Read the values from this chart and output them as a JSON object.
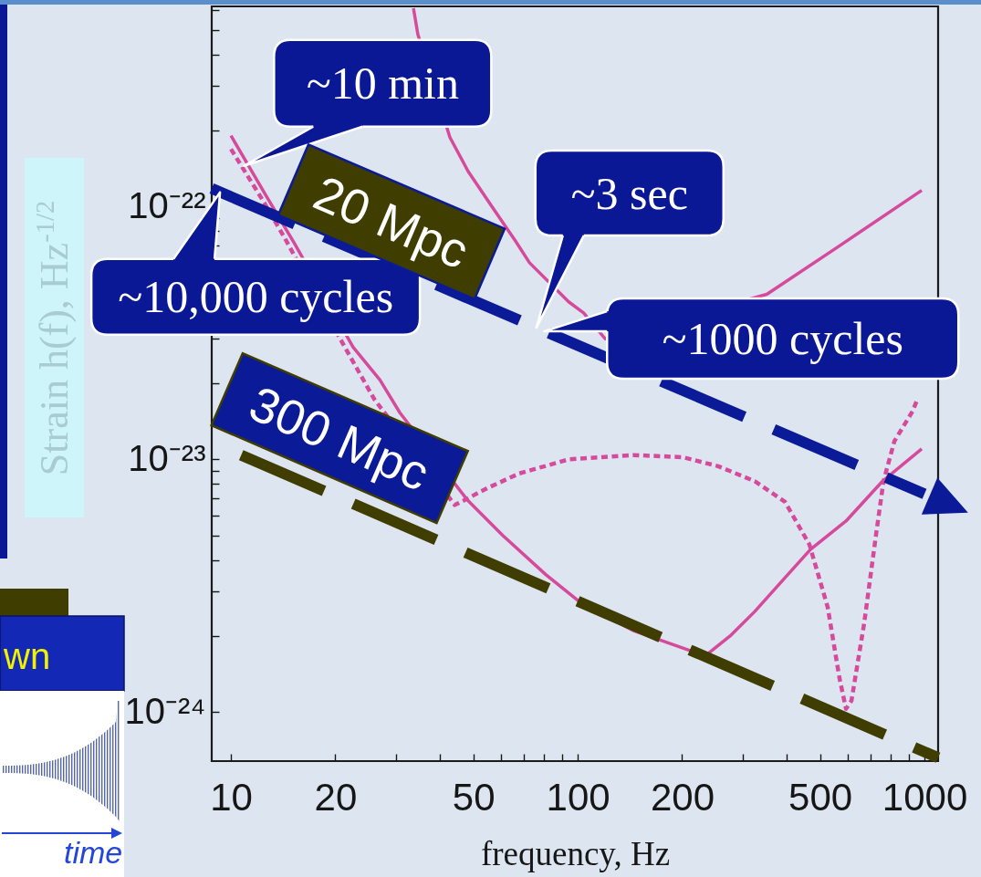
{
  "chart_data": {
    "type": "line",
    "xlabel": "frequency, Hz",
    "ylabel": "Strain h(f), Hz$^{-1/2}$",
    "log": "xy",
    "xlim": [
      8.8,
      1095
    ],
    "ylim": [
      6.4e-25,
      6.2e-22
    ],
    "xticks": [
      10,
      20,
      {
        "value": 30,
        "label": null
      },
      {
        "value": 40,
        "label": null
      },
      50,
      {
        "value": 60,
        "label": null
      },
      {
        "value": 70,
        "label": null
      },
      {
        "value": 80,
        "label": null
      },
      {
        "value": 90,
        "label": null
      },
      100,
      200,
      {
        "value": 300,
        "label": null
      },
      {
        "value": 400,
        "label": null
      },
      500,
      {
        "value": 600,
        "label": null
      },
      {
        "value": 700,
        "label": null
      },
      {
        "value": 800,
        "label": null
      },
      {
        "value": 900,
        "label": null
      },
      1000
    ],
    "yticks": [
      {
        "value": 1e-24,
        "label": "10⁻²⁴"
      },
      {
        "value": 2e-24,
        "label": null
      },
      {
        "value": 3e-24,
        "label": null
      },
      {
        "value": 4e-24,
        "label": null
      },
      {
        "value": 5e-24,
        "label": null
      },
      {
        "value": 6e-24,
        "label": null
      },
      {
        "value": 7e-24,
        "label": null
      },
      {
        "value": 8e-24,
        "label": null
      },
      {
        "value": 9e-24,
        "label": null
      },
      {
        "value": 1e-23,
        "label": "10⁻²³"
      },
      {
        "value": 2e-23,
        "label": null
      },
      {
        "value": 3e-23,
        "label": null
      },
      {
        "value": 4e-23,
        "label": null
      },
      {
        "value": 5e-23,
        "label": null
      },
      {
        "value": 6e-23,
        "label": null
      },
      {
        "value": 7e-23,
        "label": null
      },
      {
        "value": 8e-23,
        "label": null
      },
      {
        "value": 9e-23,
        "label": null
      },
      {
        "value": 1e-22,
        "label": "10⁻²²"
      },
      {
        "value": 2e-22,
        "label": null
      },
      {
        "value": 3e-22,
        "label": null
      },
      {
        "value": 4e-22,
        "label": null
      },
      {
        "value": 5e-22,
        "label": null
      },
      {
        "value": 6e-22,
        "label": null
      }
    ],
    "series": [
      {
        "color": "#d64a9b",
        "line_style": "solid",
        "x": [
          33.6,
          34.6,
          42.8,
          48.3,
          56.9,
          66.2,
          72.6,
          94.2,
          104,
          120,
          351,
          569,
          982
        ],
        "values": [
          6.1e-22,
          4.8e-22,
          1.88e-22,
          1.38e-22,
          9.9e-23,
          7.3e-23,
          6e-23,
          4.2e-23,
          3.8e-23,
          3e-23,
          4.5e-23,
          7e-23,
          1.16e-22
        ]
      },
      {
        "color": "#d64a9b",
        "line_style": "solid",
        "x": [
          10,
          12.6,
          15.2,
          22.5,
          26.9,
          30.7,
          48.1,
          60.8,
          80.9,
          101,
          145,
          209,
          236,
          275,
          324,
          396,
          469,
          594,
          757,
          982
        ],
        "values": [
          1.91e-22,
          1.11e-22,
          7.2e-23,
          2.78e-23,
          2.06e-23,
          1.53e-23,
          6.9e-24,
          5e-24,
          3.5e-24,
          2.74e-24,
          2.1e-24,
          1.76e-24,
          1.69e-24,
          2e-24,
          2.5e-24,
          3.4e-24,
          4.4e-24,
          5.7e-24,
          8.2e-24,
          1.1e-23
        ]
      },
      {
        "color": "#d64a9b",
        "line_style": "dotted",
        "x": [
          10,
          12.4,
          14.3,
          21.3,
          24.1,
          25.9,
          44.2,
          48.1,
          54.9,
          67.9,
          94.2,
          145,
          201,
          254,
          324,
          396,
          466,
          526,
          569,
          594,
          616,
          670,
          726,
          762,
          819,
          924,
          953
        ],
        "values": [
          1.69e-22,
          1.05e-22,
          7.5e-23,
          2.78e-23,
          2.06e-23,
          1.73e-23,
          6.6e-24,
          7e-24,
          7.7e-24,
          8.8e-24,
          1e-23,
          1.04e-23,
          1.02e-23,
          9.4e-24,
          8.2e-24,
          6.8e-24,
          4.6e-24,
          2.6e-24,
          1.36e-24,
          1.03e-24,
          1.11e-24,
          2.24e-24,
          5.1e-24,
          8.2e-24,
          1.18e-23,
          1.55e-23,
          1.72e-23
        ]
      },
      {
        "name": "20 Mpc",
        "color": "#0b1a97",
        "line_style": "dashed",
        "x": [
          8.8,
          1000
        ],
        "values": [
          1.18e-22,
          7.3e-24
        ]
      },
      {
        "name": "300 Mpc",
        "color": "#403d00",
        "line_style": "dashed",
        "x": [
          10.7,
          1095
        ],
        "values": [
          1.04e-23,
          6.6e-25
        ]
      }
    ],
    "annotations": [
      {
        "text": "~10 min",
        "x": 10.9,
        "y": 1.45e-22
      },
      {
        "text": "~10,000 cycles",
        "x": 9.3,
        "y": 1.14e-22
      },
      {
        "text": "~3 sec",
        "x": 76,
        "y": 3.32e-23
      },
      {
        "text": "~1000 cycles",
        "x": 80,
        "y": 3.21e-23
      },
      "wn",
      "time"
    ]
  }
}
